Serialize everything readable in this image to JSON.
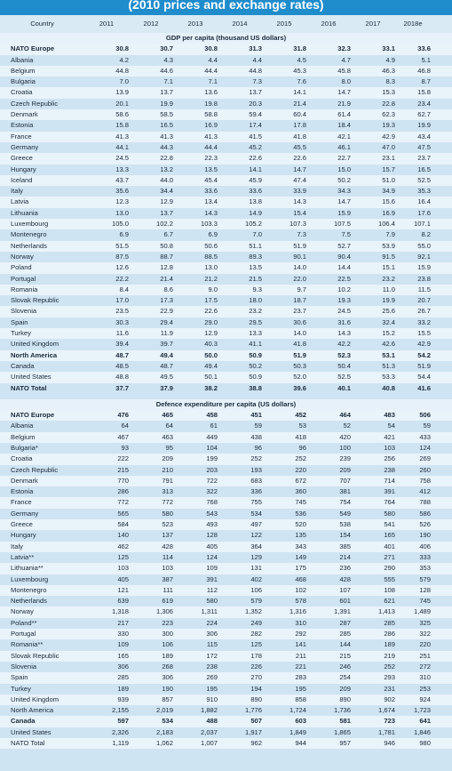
{
  "header": {
    "title": "(2010 prices and exchange rates)"
  },
  "table": {
    "columns": [
      "Country",
      "2011",
      "2012",
      "2013",
      "2014",
      "2015",
      "2016",
      "2017",
      "2018e"
    ],
    "sections": [
      {
        "title": "GDP per capita (thousand US dollars)",
        "rows": [
          [
            "NATO Europe",
            "30.8",
            "30.7",
            "30.8",
            "31.3",
            "31.8",
            "32.3",
            "33.1",
            "33.6"
          ],
          [
            "Albania",
            "4.2",
            "4.3",
            "4.4",
            "4.4",
            "4.5",
            "4.7",
            "4.9",
            "5.1"
          ],
          [
            "Belgium",
            "44.8",
            "44.6",
            "44.4",
            "44.8",
            "45.3",
            "45.8",
            "46.3",
            "46.8"
          ],
          [
            "Bulgaria",
            "7.0",
            "7.1",
            "7.1",
            "7.3",
            "7.6",
            "8.0",
            "8.3",
            "8.7"
          ],
          [
            "Croatia",
            "13.9",
            "13.7",
            "13.6",
            "13.7",
            "14.1",
            "14.7",
            "15.3",
            "15.8"
          ],
          [
            "Czech Republic",
            "20.1",
            "19.9",
            "19.8",
            "20.3",
            "21.4",
            "21.9",
            "22.8",
            "23.4"
          ],
          [
            "Denmark",
            "58.6",
            "58.5",
            "58.8",
            "59.4",
            "60.4",
            "61.4",
            "62.3",
            "62.7"
          ],
          [
            "Estonia",
            "15.8",
            "16.5",
            "16.9",
            "17.4",
            "17.8",
            "18.4",
            "19.3",
            "19.9"
          ],
          [
            "France",
            "41.3",
            "41.3",
            "41.3",
            "41.5",
            "41.8",
            "42.1",
            "42.9",
            "43.4"
          ],
          [
            "Germany",
            "44.1",
            "44.3",
            "44.4",
            "45.2",
            "45.5",
            "46.1",
            "47.0",
            "47.5"
          ],
          [
            "Greece",
            "24.5",
            "22.8",
            "22.3",
            "22.6",
            "22.6",
            "22.7",
            "23.1",
            "23.7"
          ],
          [
            "Hungary",
            "13.3",
            "13.2",
            "13.5",
            "14.1",
            "14.7",
            "15.0",
            "15.7",
            "16.5"
          ],
          [
            "Iceland",
            "43.7",
            "44.0",
            "45.4",
            "45.9",
            "47.4",
            "50.2",
            "51.0",
            "52.5"
          ],
          [
            "Italy",
            "35.6",
            "34.4",
            "33.6",
            "33.6",
            "33.9",
            "34.3",
            "34.9",
            "35.3"
          ],
          [
            "Latvia",
            "12.3",
            "12.9",
            "13.4",
            "13.8",
            "14.3",
            "14.7",
            "15.6",
            "16.4"
          ],
          [
            "Lithuania",
            "13.0",
            "13.7",
            "14.3",
            "14.9",
            "15.4",
            "15.9",
            "16.9",
            "17.6"
          ],
          [
            "Luxembourg",
            "105.0",
            "102.2",
            "103.3",
            "105.2",
            "107.3",
            "107.5",
            "106.4",
            "107.1"
          ],
          [
            "Montenegro",
            "6.9",
            "6.7",
            "6.9",
            "7.0",
            "7.3",
            "7.5",
            "7.9",
            "8.2"
          ],
          [
            "Netherlands",
            "51.5",
            "50.8",
            "50.6",
            "51.1",
            "51.9",
            "52.7",
            "53.9",
            "55.0"
          ],
          [
            "Norway",
            "87.5",
            "88.7",
            "88.5",
            "89.3",
            "90.1",
            "90.4",
            "91.5",
            "92.1"
          ],
          [
            "Poland",
            "12.6",
            "12.8",
            "13.0",
            "13.5",
            "14.0",
            "14.4",
            "15.1",
            "15.9"
          ],
          [
            "Portugal",
            "22.2",
            "21.4",
            "21.2",
            "21.5",
            "22.0",
            "22.5",
            "23.2",
            "23.8"
          ],
          [
            "Romania",
            "8.4",
            "8.6",
            "9.0",
            "9.3",
            "9.7",
            "10.2",
            "11.0",
            "11.5"
          ],
          [
            "Slovak Republic",
            "17.0",
            "17.3",
            "17.5",
            "18.0",
            "18.7",
            "19.3",
            "19.9",
            "20.7"
          ],
          [
            "Slovenia",
            "23.5",
            "22.9",
            "22.6",
            "23.2",
            "23.7",
            "24.5",
            "25.6",
            "26.7"
          ],
          [
            "Spain",
            "30.3",
            "29.4",
            "29.0",
            "29.5",
            "30.6",
            "31.6",
            "32.4",
            "33.2"
          ],
          [
            "Turkey",
            "11.6",
            "11.9",
            "12.9",
            "13.3",
            "14.0",
            "14.3",
            "15.2",
            "15.5"
          ],
          [
            "United Kingdom",
            "39.4",
            "39.7",
            "40.3",
            "41.1",
            "41.8",
            "42.2",
            "42.6",
            "42.9"
          ],
          [
            "North America",
            "48.7",
            "49.4",
            "50.0",
            "50.9",
            "51.9",
            "52.3",
            "53.1",
            "54.2"
          ],
          [
            "Canada",
            "48.5",
            "48.7",
            "49.4",
            "50.2",
            "50.3",
            "50.4",
            "51.3",
            "51.9"
          ],
          [
            "United States",
            "48.8",
            "49.5",
            "50.1",
            "50.9",
            "52.0",
            "52.5",
            "53.3",
            "54.4"
          ],
          [
            "NATO Total",
            "37.7",
            "37.9",
            "38.2",
            "38.8",
            "39.6",
            "40.1",
            "40.8",
            "41.6"
          ]
        ]
      },
      {
        "title": "Defence expenditure per capita (US dollars)",
        "rows": [
          [
            "NATO Europe",
            "476",
            "465",
            "458",
            "451",
            "452",
            "464",
            "483",
            "506"
          ],
          [
            "Albania",
            "64",
            "64",
            "61",
            "59",
            "53",
            "52",
            "54",
            "59"
          ],
          [
            "Belgium",
            "467",
            "463",
            "449",
            "438",
            "418",
            "420",
            "421",
            "433"
          ],
          [
            "Bulgaria*",
            "93",
            "95",
            "104",
            "96",
            "96",
            "100",
            "103",
            "124"
          ],
          [
            "Croatia",
            "222",
            "209",
            "199",
            "252",
            "252",
            "239",
            "256",
            "269"
          ],
          [
            "Czech Republic",
            "215",
            "210",
            "203",
            "193",
            "220",
            "209",
            "238",
            "260"
          ],
          [
            "Denmark",
            "770",
            "791",
            "722",
            "683",
            "672",
            "707",
            "714",
            "758"
          ],
          [
            "Estonia",
            "286",
            "313",
            "322",
            "336",
            "360",
            "381",
            "391",
            "412"
          ],
          [
            "France",
            "772",
            "772",
            "768",
            "755",
            "745",
            "754",
            "764",
            "788"
          ],
          [
            "Germany",
            "565",
            "580",
            "543",
            "534",
            "536",
            "549",
            "580",
            "586"
          ],
          [
            "Greece",
            "584",
            "523",
            "493",
            "497",
            "520",
            "538",
            "541",
            "526"
          ],
          [
            "Hungary",
            "140",
            "137",
            "128",
            "122",
            "135",
            "154",
            "165",
            "190"
          ],
          [
            "Italy",
            "462",
            "428",
            "405",
            "364",
            "343",
            "385",
            "401",
            "406"
          ],
          [
            "Latvia**",
            "125",
            "114",
            "124",
            "129",
            "149",
            "214",
            "271",
            "333"
          ],
          [
            "Lithuania**",
            "103",
            "103",
            "109",
            "131",
            "175",
            "236",
            "290",
            "353"
          ],
          [
            "Luxembourg",
            "405",
            "387",
            "391",
            "402",
            "468",
            "428",
            "555",
            "579"
          ],
          [
            "Montenegro",
            "121",
            "111",
            "112",
            "106",
            "102",
            "107",
            "108",
            "128"
          ],
          [
            "Netherlands",
            "639",
            "619",
            "580",
            "579",
            "578",
            "601",
            "621",
            "745"
          ],
          [
            "Norway",
            "1,318",
            "1,306",
            "1,311",
            "1,352",
            "1,316",
            "1,391",
            "1,413",
            "1,489"
          ],
          [
            "Poland**",
            "217",
            "223",
            "224",
            "249",
            "310",
            "287",
            "285",
            "325"
          ],
          [
            "Portugal",
            "330",
            "300",
            "306",
            "282",
            "292",
            "285",
            "286",
            "322"
          ],
          [
            "Romania**",
            "109",
            "106",
            "115",
            "125",
            "141",
            "144",
            "189",
            "220"
          ],
          [
            "Slovak Republic",
            "165",
            "189",
            "172",
            "178",
            "211",
            "215",
            "219",
            "251"
          ],
          [
            "Slovenia",
            "306",
            "268",
            "238",
            "226",
            "221",
            "246",
            "252",
            "272"
          ],
          [
            "Spain",
            "285",
            "306",
            "269",
            "270",
            "283",
            "254",
            "293",
            "310"
          ],
          [
            "Turkey",
            "189",
            "190",
            "195",
            "194",
            "195",
            "209",
            "231",
            "253"
          ],
          [
            "United Kingdom",
            "939",
            "857",
            "910",
            "890",
            "858",
            "890",
            "902",
            "924"
          ],
          [
            "North America",
            "2,155",
            "2,019",
            "1,882",
            "1,776",
            "1,724",
            "1,736",
            "1,674",
            "1,723"
          ],
          [
            "Canada",
            "597",
            "534",
            "488",
            "507",
            "603",
            "581",
            "723",
            "641"
          ],
          [
            "United States",
            "2,326",
            "2,183",
            "2,037",
            "1,917",
            "1,849",
            "1,865",
            "1,781",
            "1,846"
          ],
          [
            "NATO Total",
            "1,119",
            "1,062",
            "1,007",
            "962",
            "944",
            "957",
            "946",
            "980"
          ]
        ]
      }
    ]
  }
}
